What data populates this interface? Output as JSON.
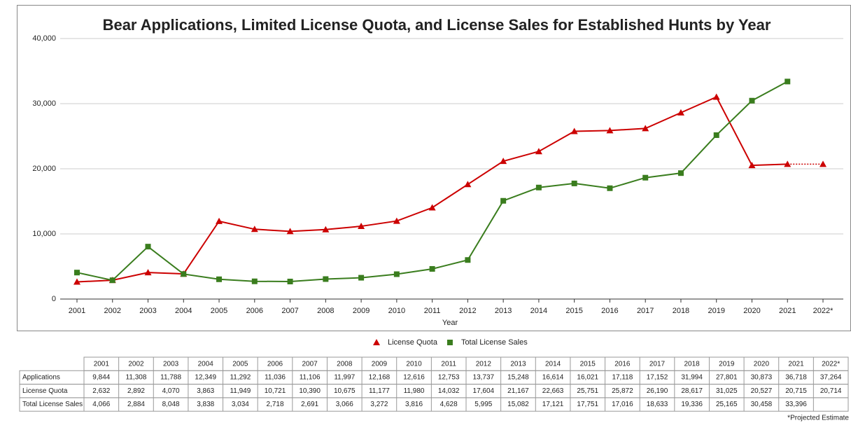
{
  "chart_data": {
    "type": "line",
    "title": "Bear Applications, Limited License Quota, and License Sales for Established Hunts by Year",
    "xlabel": "Year",
    "categories": [
      "2001",
      "2002",
      "2003",
      "2004",
      "2005",
      "2006",
      "2007",
      "2008",
      "2009",
      "2010",
      "2011",
      "2012",
      "2013",
      "2014",
      "2015",
      "2016",
      "2017",
      "2018",
      "2019",
      "2020",
      "2021",
      "2022*"
    ],
    "ylim": [
      0,
      40000
    ],
    "yticks": [
      0,
      {
        "value": 10000,
        "label": "10,000"
      },
      {
        "value": 20000,
        "label": "20,000"
      },
      {
        "value": 30000,
        "label": "30,000"
      },
      {
        "value": 40000,
        "label": "40,000"
      }
    ],
    "grid": true,
    "legend": "bottom",
    "series": [
      {
        "name": "License Quota",
        "color": "#cc0000",
        "marker": "triangle",
        "dotted_from": 20,
        "values": [
          2632,
          2892,
          4070,
          3863,
          11949,
          10721,
          10390,
          10675,
          11177,
          11980,
          14032,
          17604,
          21167,
          22663,
          25751,
          25872,
          26190,
          28617,
          31025,
          20527,
          20715,
          20714
        ],
        "value_labels": [
          "2,632",
          "2,892",
          "4,070",
          "3,863",
          "11,949",
          "10,721",
          "10,390",
          "10,675",
          "11,177",
          "11,980",
          "14,032",
          "17,604",
          "21,167",
          "22,663",
          "25,751",
          "25,872",
          "26,190",
          "28,617",
          "31,025",
          "20,527",
          "20,715",
          "20,714"
        ]
      },
      {
        "name": "Total License Sales",
        "color": "#3a7d1e",
        "marker": "square",
        "values": [
          4066,
          2884,
          8048,
          3838,
          3034,
          2718,
          2691,
          3066,
          3272,
          3816,
          4628,
          5995,
          15082,
          17121,
          17751,
          17016,
          18633,
          19336,
          25165,
          30458,
          33396,
          null
        ],
        "value_labels": [
          "4,066",
          "2,884",
          "8,048",
          "3,838",
          "3,034",
          "2,718",
          "2,691",
          "3,066",
          "3,272",
          "3,816",
          "4,628",
          "5,995",
          "15,082",
          "17,121",
          "17,751",
          "17,016",
          "18,633",
          "19,336",
          "25,165",
          "30,458",
          "33,396",
          null
        ]
      }
    ],
    "table_rows": [
      {
        "name": "Applications",
        "values": [
          9844,
          11308,
          11788,
          12349,
          11292,
          11036,
          11106,
          11997,
          12168,
          12616,
          12753,
          13737,
          15248,
          16614,
          16021,
          17118,
          17152,
          31994,
          27801,
          30873,
          36718,
          37264
        ],
        "value_labels": [
          "9,844",
          "11,308",
          "11,788",
          "12,349",
          "11,292",
          "11,036",
          "11,106",
          "11,997",
          "12,168",
          "12,616",
          "12,753",
          "13,737",
          "15,248",
          "16,614",
          "16,021",
          "17,118",
          "17,152",
          "31,994",
          "27,801",
          "30,873",
          "36,718",
          "37,264"
        ]
      }
    ],
    "note": "*Projected Estimate"
  }
}
